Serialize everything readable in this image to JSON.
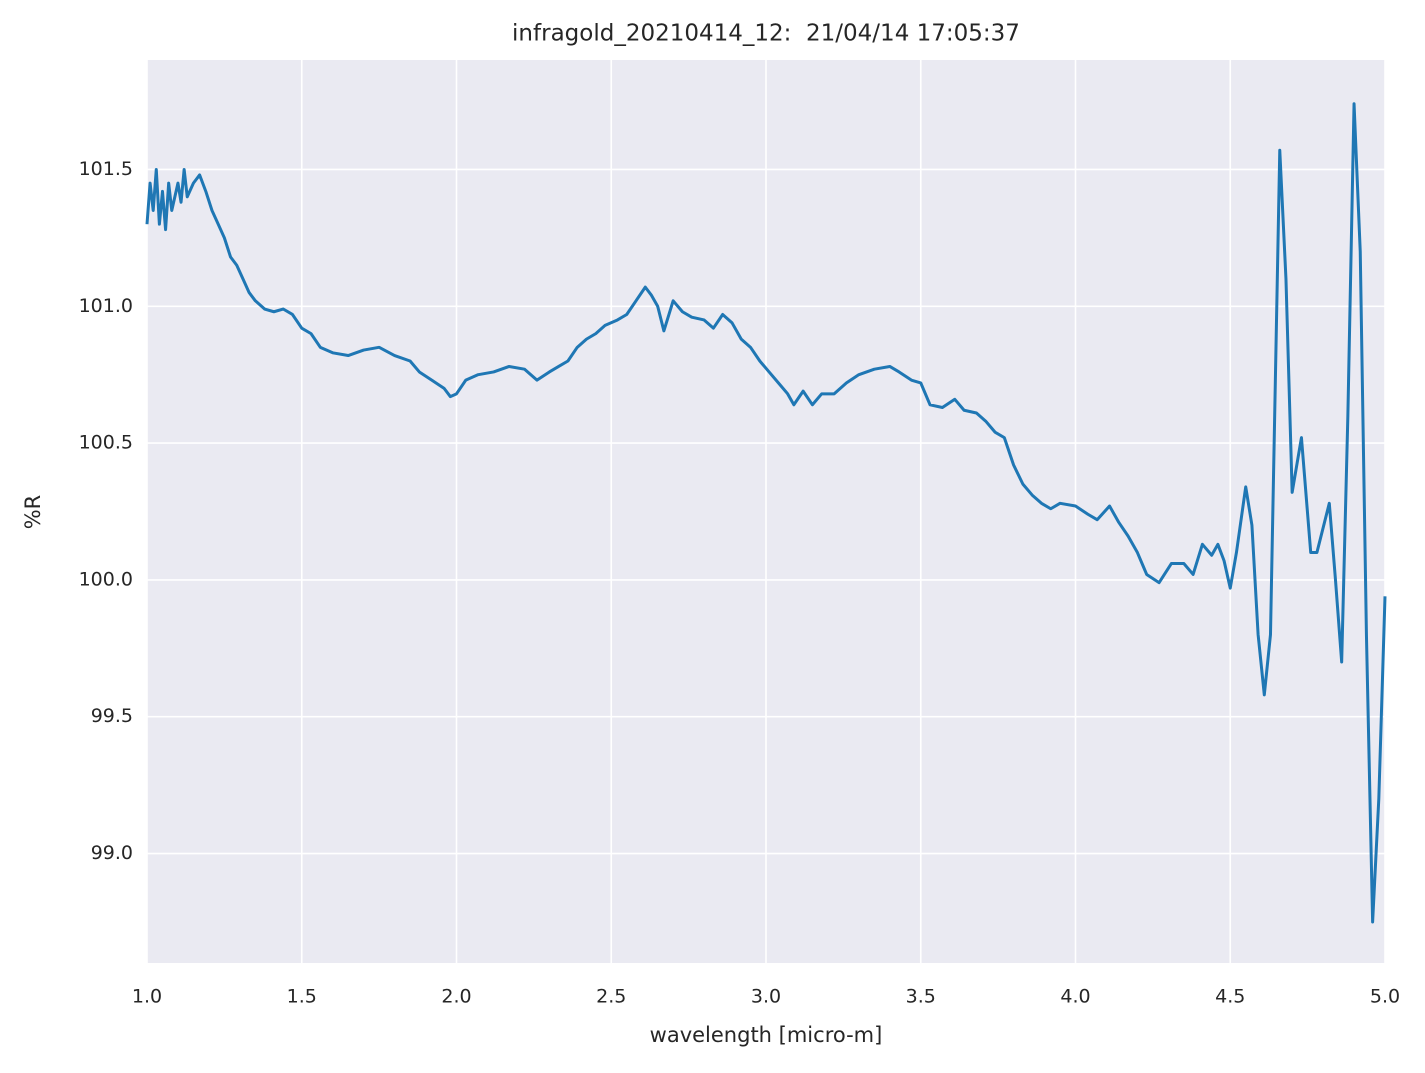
{
  "chart_data": {
    "type": "line",
    "title": "infragold_20210414_12:  21/04/14 17:05:37",
    "x_label": "wavelength [micro-m]",
    "y_label": "%R",
    "color": "#1f77b4",
    "grid": true,
    "xlim": [
      1.0,
      5.0
    ],
    "xticks": [
      {
        "value": 1.0,
        "label": "1.0"
      },
      1.5,
      {
        "value": 2.0,
        "label": "2.0"
      },
      2.5,
      {
        "value": 3.0,
        "label": "3.0"
      },
      3.5,
      {
        "value": 4.0,
        "label": "4.0"
      },
      4.5,
      {
        "value": 5.0,
        "label": "5.0"
      }
    ],
    "ylim": [
      98.6,
      101.9
    ],
    "yticks": [
      {
        "value": 99.0,
        "label": "99.0"
      },
      99.5,
      {
        "value": 100.0,
        "label": "100.0"
      },
      100.5,
      {
        "value": 101.0,
        "label": "101.0"
      },
      101.5
    ],
    "x": [
      1.0,
      1.01,
      1.02,
      1.03,
      1.04,
      1.05,
      1.06,
      1.07,
      1.08,
      1.1,
      1.11,
      1.12,
      1.13,
      1.15,
      1.17,
      1.19,
      1.21,
      1.23,
      1.25,
      1.27,
      1.29,
      1.31,
      1.33,
      1.35,
      1.38,
      1.41,
      1.44,
      1.47,
      1.5,
      1.53,
      1.56,
      1.6,
      1.65,
      1.7,
      1.75,
      1.8,
      1.85,
      1.88,
      1.92,
      1.96,
      1.98,
      2.0,
      2.03,
      2.07,
      2.12,
      2.17,
      2.22,
      2.26,
      2.3,
      2.33,
      2.36,
      2.39,
      2.42,
      2.45,
      2.48,
      2.52,
      2.55,
      2.58,
      2.61,
      2.63,
      2.65,
      2.67,
      2.7,
      2.73,
      2.76,
      2.8,
      2.83,
      2.86,
      2.89,
      2.92,
      2.95,
      2.98,
      3.01,
      3.04,
      3.07,
      3.09,
      3.12,
      3.15,
      3.18,
      3.22,
      3.26,
      3.3,
      3.35,
      3.4,
      3.43,
      3.47,
      3.5,
      3.53,
      3.57,
      3.61,
      3.64,
      3.68,
      3.71,
      3.74,
      3.77,
      3.8,
      3.83,
      3.86,
      3.89,
      3.92,
      3.95,
      4.0,
      4.04,
      4.07,
      4.11,
      4.14,
      4.17,
      4.2,
      4.23,
      4.27,
      4.31,
      4.35,
      4.38,
      4.41,
      4.44,
      4.46,
      4.48,
      4.5,
      4.52,
      4.55,
      4.57,
      4.59,
      4.61,
      4.63,
      4.66,
      4.68,
      4.7,
      4.73,
      4.76,
      4.78,
      4.82,
      4.84,
      4.86,
      4.88,
      4.9,
      4.92,
      4.94,
      4.96,
      4.98,
      5.0
    ],
    "values": [
      101.3,
      101.45,
      101.35,
      101.5,
      101.3,
      101.42,
      101.28,
      101.45,
      101.35,
      101.45,
      101.38,
      101.5,
      101.4,
      101.45,
      101.48,
      101.42,
      101.35,
      101.3,
      101.25,
      101.18,
      101.15,
      101.1,
      101.05,
      101.02,
      100.99,
      100.98,
      100.99,
      100.97,
      100.92,
      100.9,
      100.85,
      100.83,
      100.82,
      100.84,
      100.85,
      100.82,
      100.8,
      100.76,
      100.73,
      100.7,
      100.67,
      100.68,
      100.73,
      100.75,
      100.76,
      100.78,
      100.77,
      100.73,
      100.76,
      100.78,
      100.8,
      100.85,
      100.88,
      100.9,
      100.93,
      100.95,
      100.97,
      101.02,
      101.07,
      101.04,
      101.0,
      100.91,
      101.02,
      100.98,
      100.96,
      100.95,
      100.92,
      100.97,
      100.94,
      100.88,
      100.85,
      100.8,
      100.76,
      100.72,
      100.68,
      100.64,
      100.69,
      100.64,
      100.68,
      100.68,
      100.72,
      100.75,
      100.77,
      100.78,
      100.76,
      100.73,
      100.72,
      100.64,
      100.63,
      100.66,
      100.62,
      100.61,
      100.58,
      100.54,
      100.52,
      100.42,
      100.35,
      100.31,
      100.28,
      100.26,
      100.28,
      100.27,
      100.24,
      100.22,
      100.27,
      100.21,
      100.16,
      100.1,
      100.02,
      99.99,
      100.06,
      100.06,
      100.02,
      100.13,
      100.09,
      100.13,
      100.07,
      99.97,
      100.1,
      100.34,
      100.2,
      99.8,
      99.58,
      99.8,
      101.57,
      101.1,
      100.32,
      100.52,
      100.1,
      100.1,
      100.28,
      100.0,
      99.7,
      100.6,
      101.74,
      101.2,
      99.8,
      98.75,
      99.2,
      99.94
    ]
  }
}
